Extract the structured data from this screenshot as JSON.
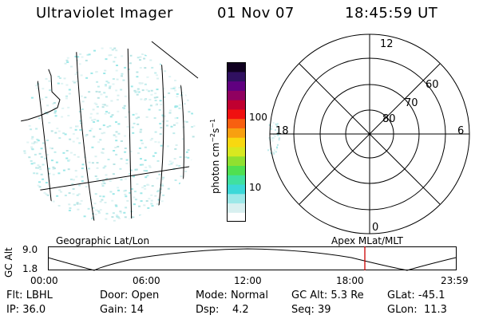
{
  "header": {
    "instrument": "Ultraviolet Imager",
    "date": "01 Nov 07",
    "time": "18:45:59 UT"
  },
  "colorbar": {
    "label": "photon cm⁻²s⁻¹",
    "label_main": "photon cm",
    "label_exp1": "−2",
    "label_s": "s",
    "label_exp2": "−1",
    "ticks": [
      "100",
      "10"
    ],
    "tick_values": [
      100,
      10
    ],
    "scale": "log",
    "colors": [
      "#ffffff",
      "#d8f0f0",
      "#9ce8e8",
      "#3cd8d8",
      "#40e0a0",
      "#50e050",
      "#90e030",
      "#d8e820",
      "#f8d810",
      "#f8a010",
      "#f86010",
      "#f01010",
      "#c00030",
      "#900060",
      "#600080",
      "#301060",
      "#100020"
    ]
  },
  "polar_plot": {
    "lat_labels": [
      "60",
      "70",
      "80"
    ],
    "mlt_labels": {
      "top": "12",
      "left": "18",
      "right": "6",
      "bottom": "0"
    }
  },
  "timeline": {
    "left_label": "Geographic Lat/Lon",
    "right_label": "Apex MLat/MLT",
    "y_axis_label": "GC Alt",
    "y_ticks": [
      "9.0",
      "1.8"
    ],
    "x_ticks": [
      "00:00",
      "06:00",
      "12:00",
      "18:00",
      "23:59"
    ],
    "marker_time": "18:45:59",
    "marker_color": "#cc0000"
  },
  "status": {
    "row1": [
      {
        "key": "Flt:",
        "value": "LBHL"
      },
      {
        "key": "Door:",
        "value": "Open"
      },
      {
        "key": "Mode:",
        "value": "Normal"
      },
      {
        "key": "GC Alt:",
        "value": "5.3 Re"
      },
      {
        "key": "GLat:",
        "value": "-45.1"
      }
    ],
    "row2": [
      {
        "key": "IP:",
        "value": "36.0"
      },
      {
        "key": "Gain:",
        "value": "14"
      },
      {
        "key": "Dsp:",
        "value": "4.2"
      },
      {
        "key": "Seq:",
        "value": "39"
      },
      {
        "key": "GLon:",
        "value": "11.3"
      }
    ]
  }
}
